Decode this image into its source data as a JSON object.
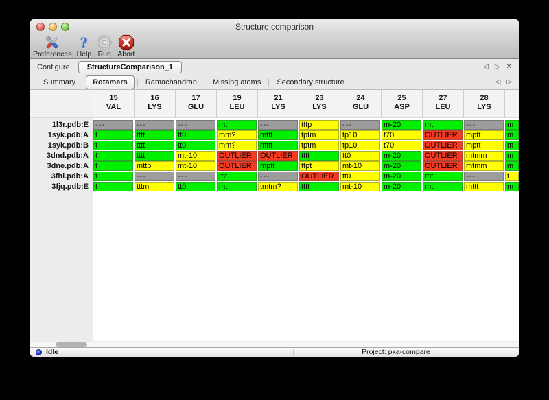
{
  "window": {
    "title": "Structure comparison"
  },
  "toolbar": {
    "items": [
      {
        "id": "preferences",
        "label": "Preferences",
        "icon": "tools-icon"
      },
      {
        "id": "help",
        "label": "Help",
        "icon": "question-icon"
      },
      {
        "id": "run",
        "label": "Run",
        "icon": "gear-icon"
      },
      {
        "id": "abort",
        "label": "Abort",
        "icon": "stop-icon"
      }
    ]
  },
  "configure": {
    "label": "Configure",
    "job_name": "StructureComparison_1",
    "nav": {
      "prev": "◁",
      "next": "▷",
      "close": "✕"
    }
  },
  "tabs": {
    "items": [
      "Summary",
      "Rotamers",
      "Ramachandran",
      "Missing atoms",
      "Secondary structure"
    ],
    "active": "Rotamers",
    "nav": {
      "prev": "◁",
      "next": "▷"
    }
  },
  "legend_colors": {
    "favored": "#00f000",
    "allowed": "#ffff00",
    "outlier": "#f83a20",
    "missing": "#9c9c9c"
  },
  "table": {
    "columns": [
      {
        "num": "15",
        "res": "VAL"
      },
      {
        "num": "16",
        "res": "LYS"
      },
      {
        "num": "17",
        "res": "GLU"
      },
      {
        "num": "19",
        "res": "LEU"
      },
      {
        "num": "21",
        "res": "LYS"
      },
      {
        "num": "23",
        "res": "LYS"
      },
      {
        "num": "24",
        "res": "GLU"
      },
      {
        "num": "25",
        "res": "ASP"
      },
      {
        "num": "27",
        "res": "LEU"
      },
      {
        "num": "28",
        "res": "LYS"
      }
    ],
    "rows": [
      {
        "label": "1l3r.pdb:E",
        "cells": [
          {
            "v": "---",
            "c": "missing"
          },
          {
            "v": "---",
            "c": "missing"
          },
          {
            "v": "---",
            "c": "missing"
          },
          {
            "v": "mt",
            "c": "favored"
          },
          {
            "v": "---",
            "c": "missing"
          },
          {
            "v": "tttp",
            "c": "allowed"
          },
          {
            "v": "---",
            "c": "missing"
          },
          {
            "v": "m-20",
            "c": "favored"
          },
          {
            "v": "mt",
            "c": "favored"
          },
          {
            "v": "---",
            "c": "missing"
          }
        ],
        "partial": {
          "v": "m",
          "c": "favored"
        }
      },
      {
        "label": "1syk.pdb:A",
        "cells": [
          {
            "v": "t",
            "c": "favored",
            "clip": true
          },
          {
            "v": "tttt",
            "c": "favored"
          },
          {
            "v": "tt0",
            "c": "favored"
          },
          {
            "v": "mm?",
            "c": "allowed"
          },
          {
            "v": "mttt",
            "c": "favored"
          },
          {
            "v": "tptm",
            "c": "allowed"
          },
          {
            "v": "tp10",
            "c": "allowed"
          },
          {
            "v": "t70",
            "c": "allowed"
          },
          {
            "v": "OUTLIER",
            "c": "outlier"
          },
          {
            "v": "mptt",
            "c": "allowed"
          }
        ],
        "partial": {
          "v": "m",
          "c": "favored"
        }
      },
      {
        "label": "1syk.pdb:B",
        "cells": [
          {
            "v": "t",
            "c": "favored",
            "clip": true
          },
          {
            "v": "tttt",
            "c": "favored"
          },
          {
            "v": "tt0",
            "c": "favored"
          },
          {
            "v": "mm?",
            "c": "allowed"
          },
          {
            "v": "mttt",
            "c": "favored"
          },
          {
            "v": "tptm",
            "c": "allowed"
          },
          {
            "v": "tp10",
            "c": "allowed"
          },
          {
            "v": "t70",
            "c": "allowed"
          },
          {
            "v": "OUTLIER",
            "c": "outlier"
          },
          {
            "v": "mptt",
            "c": "allowed"
          }
        ],
        "partial": {
          "v": "m",
          "c": "favored"
        }
      },
      {
        "label": "3dnd.pdb:A",
        "cells": [
          {
            "v": "t",
            "c": "favored",
            "clip": true
          },
          {
            "v": "tttt",
            "c": "favored"
          },
          {
            "v": "mt-10",
            "c": "allowed"
          },
          {
            "v": "OUTLIER",
            "c": "outlier"
          },
          {
            "v": "OUTLIER",
            "c": "outlier"
          },
          {
            "v": "tttt",
            "c": "favored"
          },
          {
            "v": "tt0",
            "c": "allowed"
          },
          {
            "v": "m-20",
            "c": "favored"
          },
          {
            "v": "OUTLIER",
            "c": "outlier"
          },
          {
            "v": "mtmm",
            "c": "allowed"
          }
        ],
        "partial": {
          "v": "m",
          "c": "favored"
        }
      },
      {
        "label": "3dne.pdb:A",
        "cells": [
          {
            "v": "t",
            "c": "favored",
            "clip": true
          },
          {
            "v": "mttp",
            "c": "allowed"
          },
          {
            "v": "mt-10",
            "c": "allowed"
          },
          {
            "v": "OUTLIER",
            "c": "outlier"
          },
          {
            "v": "mptt",
            "c": "favored"
          },
          {
            "v": "ttpt",
            "c": "allowed"
          },
          {
            "v": "mt-10",
            "c": "allowed"
          },
          {
            "v": "m-20",
            "c": "favored"
          },
          {
            "v": "OUTLIER",
            "c": "outlier"
          },
          {
            "v": "mtmm",
            "c": "allowed"
          }
        ],
        "partial": {
          "v": "m",
          "c": "favored"
        }
      },
      {
        "label": "3fhi.pdb:A",
        "cells": [
          {
            "v": "t",
            "c": "favored",
            "clip": true
          },
          {
            "v": "---",
            "c": "missing"
          },
          {
            "v": "---",
            "c": "missing"
          },
          {
            "v": "mt",
            "c": "favored"
          },
          {
            "v": "---",
            "c": "missing"
          },
          {
            "v": "OUTLIER",
            "c": "outlier"
          },
          {
            "v": "tt0",
            "c": "allowed"
          },
          {
            "v": "m-20",
            "c": "favored"
          },
          {
            "v": "mt",
            "c": "favored"
          },
          {
            "v": "---",
            "c": "missing"
          }
        ],
        "partial": {
          "v": "t",
          "c": "allowed",
          "clip": true
        }
      },
      {
        "label": "3fjq.pdb:E",
        "cells": [
          {
            "v": "t",
            "c": "favored",
            "clip": true
          },
          {
            "v": "tttm",
            "c": "allowed"
          },
          {
            "v": "tt0",
            "c": "favored"
          },
          {
            "v": "mt",
            "c": "favored"
          },
          {
            "v": "tmtm?",
            "c": "allowed"
          },
          {
            "v": "tttt",
            "c": "favored"
          },
          {
            "v": "mt-10",
            "c": "allowed"
          },
          {
            "v": "m-20",
            "c": "favored"
          },
          {
            "v": "mt",
            "c": "favored"
          },
          {
            "v": "mttt",
            "c": "allowed"
          }
        ],
        "partial": {
          "v": "m",
          "c": "favored"
        }
      }
    ]
  },
  "statusbar": {
    "state": "Idle",
    "project": "Project: pka-compare"
  }
}
